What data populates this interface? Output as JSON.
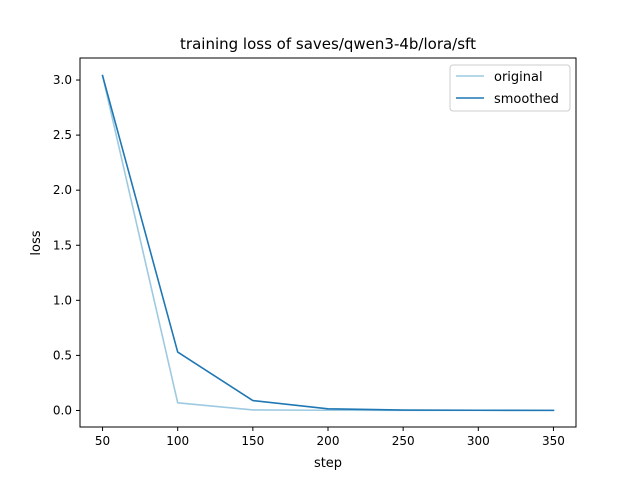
{
  "chart_data": {
    "type": "line",
    "title": "training loss of saves/qwen3-4b/lora/sft",
    "xlabel": "step",
    "ylabel": "loss",
    "x": [
      50,
      100,
      150,
      200,
      250,
      300,
      350
    ],
    "xticks": [
      50,
      100,
      150,
      200,
      250,
      300,
      350
    ],
    "yticks": [
      "0.0",
      "0.5",
      "1.0",
      "1.5",
      "2.0",
      "2.5",
      "3.0"
    ],
    "xlim": [
      35,
      365
    ],
    "ylim": [
      -0.15,
      3.2
    ],
    "grid": false,
    "legend_position": "top-right",
    "series": [
      {
        "name": "original",
        "color": "#9ecae1",
        "values": [
          3.04,
          0.07,
          0.005,
          0.002,
          0.001,
          0.001,
          0.001
        ]
      },
      {
        "name": "smoothed",
        "color": "#1f77b4",
        "values": [
          3.04,
          0.53,
          0.09,
          0.015,
          0.004,
          0.002,
          0.001
        ]
      }
    ]
  }
}
